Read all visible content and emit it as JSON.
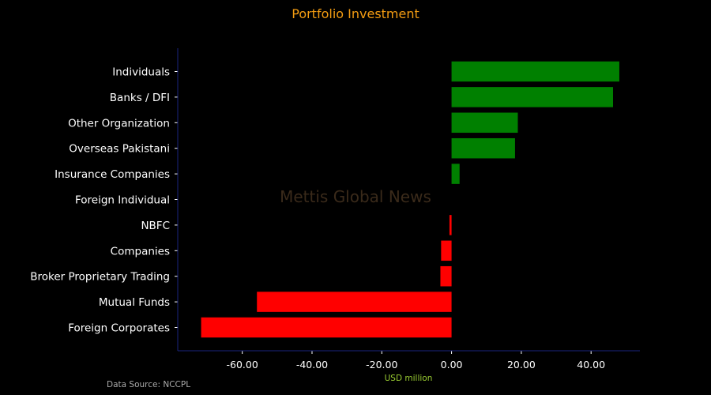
{
  "chart_data": {
    "type": "bar",
    "orientation": "horizontal",
    "title": "Portfolio Investment",
    "xlabel": "USD million",
    "ylabel": "",
    "categories": [
      "Individuals",
      "Banks / DFI",
      "Other Organization",
      "Overseas Pakistani",
      "Insurance Companies",
      "Foreign Individual",
      "NBFC",
      "Companies",
      "Broker Proprietary Trading",
      "Mutual Funds",
      "Foreign Corporates"
    ],
    "values": [
      48.1,
      46.3,
      19.0,
      18.2,
      2.3,
      0.0,
      -0.6,
      -3.0,
      -3.2,
      -55.8,
      -71.8
    ],
    "xlim": [
      -78.5,
      54.0
    ],
    "xticks": [
      "-60.00",
      "-40.00",
      "-20.00",
      "0.00",
      "20.00",
      "40.00"
    ],
    "xtick_values": [
      -60,
      -40,
      -20,
      0,
      20,
      40
    ],
    "grid": false,
    "legend": "none"
  },
  "colors": {
    "positive": "#008000",
    "negative": "#ff0000",
    "title": "#f39c12",
    "xlabel": "#9acd32",
    "axis": "#1a237e",
    "text": "#ffffff",
    "source": "#aaaaaa",
    "watermark": "#3a2a1a"
  },
  "watermark": "Mettis Global News",
  "source_text": "Data Source: NCCPL"
}
